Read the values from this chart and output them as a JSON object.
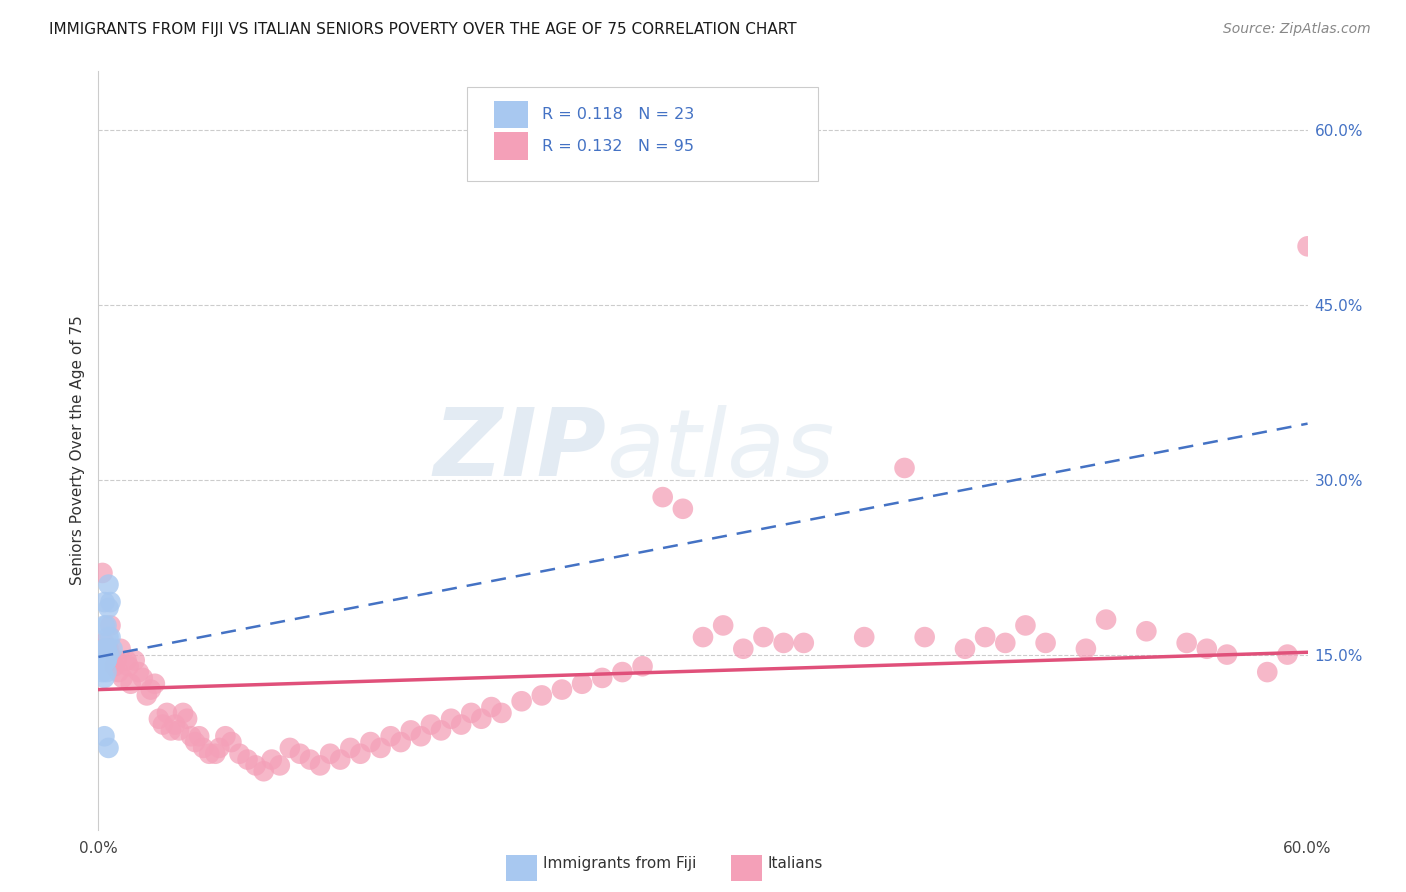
{
  "title": "IMMIGRANTS FROM FIJI VS ITALIAN SENIORS POVERTY OVER THE AGE OF 75 CORRELATION CHART",
  "source": "Source: ZipAtlas.com",
  "ylabel": "Seniors Poverty Over the Age of 75",
  "x_min": 0.0,
  "x_max": 0.6,
  "y_min": 0.0,
  "y_max": 0.65,
  "fiji_R": 0.118,
  "fiji_N": 23,
  "italian_R": 0.132,
  "italian_N": 95,
  "fiji_color": "#a8c8f0",
  "italian_color": "#f4a0b8",
  "fiji_line_color": "#4472c4",
  "italian_line_color": "#e0507a",
  "background_color": "#ffffff",
  "grid_color": "#cccccc",
  "watermark_zip": "ZIP",
  "watermark_atlas": "atlas",
  "fiji_x": [
    0.003,
    0.004,
    0.005,
    0.003,
    0.006,
    0.004,
    0.002,
    0.003,
    0.005,
    0.004,
    0.007,
    0.003,
    0.004,
    0.002,
    0.005,
    0.003,
    0.004,
    0.005,
    0.006,
    0.004,
    0.003,
    0.005,
    0.004
  ],
  "fiji_y": [
    0.195,
    0.175,
    0.21,
    0.155,
    0.165,
    0.155,
    0.14,
    0.155,
    0.165,
    0.145,
    0.155,
    0.175,
    0.135,
    0.135,
    0.19,
    0.13,
    0.145,
    0.15,
    0.195,
    0.155,
    0.08,
    0.07,
    0.145
  ],
  "italian_x": [
    0.002,
    0.003,
    0.005,
    0.006,
    0.008,
    0.009,
    0.01,
    0.011,
    0.012,
    0.014,
    0.015,
    0.016,
    0.018,
    0.02,
    0.022,
    0.024,
    0.026,
    0.028,
    0.03,
    0.032,
    0.034,
    0.036,
    0.038,
    0.04,
    0.042,
    0.044,
    0.046,
    0.048,
    0.05,
    0.052,
    0.055,
    0.058,
    0.06,
    0.063,
    0.066,
    0.07,
    0.074,
    0.078,
    0.082,
    0.086,
    0.09,
    0.095,
    0.1,
    0.105,
    0.11,
    0.115,
    0.12,
    0.125,
    0.13,
    0.135,
    0.14,
    0.145,
    0.15,
    0.155,
    0.16,
    0.165,
    0.17,
    0.175,
    0.18,
    0.185,
    0.19,
    0.195,
    0.2,
    0.21,
    0.22,
    0.23,
    0.24,
    0.25,
    0.26,
    0.27,
    0.28,
    0.29,
    0.3,
    0.31,
    0.32,
    0.33,
    0.34,
    0.35,
    0.38,
    0.4,
    0.41,
    0.43,
    0.44,
    0.45,
    0.46,
    0.47,
    0.49,
    0.5,
    0.52,
    0.54,
    0.55,
    0.56,
    0.58,
    0.59,
    0.6
  ],
  "italian_y": [
    0.22,
    0.16,
    0.155,
    0.175,
    0.14,
    0.145,
    0.135,
    0.155,
    0.13,
    0.145,
    0.14,
    0.125,
    0.145,
    0.135,
    0.13,
    0.115,
    0.12,
    0.125,
    0.095,
    0.09,
    0.1,
    0.085,
    0.09,
    0.085,
    0.1,
    0.095,
    0.08,
    0.075,
    0.08,
    0.07,
    0.065,
    0.065,
    0.07,
    0.08,
    0.075,
    0.065,
    0.06,
    0.055,
    0.05,
    0.06,
    0.055,
    0.07,
    0.065,
    0.06,
    0.055,
    0.065,
    0.06,
    0.07,
    0.065,
    0.075,
    0.07,
    0.08,
    0.075,
    0.085,
    0.08,
    0.09,
    0.085,
    0.095,
    0.09,
    0.1,
    0.095,
    0.105,
    0.1,
    0.11,
    0.115,
    0.12,
    0.125,
    0.13,
    0.135,
    0.14,
    0.285,
    0.275,
    0.165,
    0.175,
    0.155,
    0.165,
    0.16,
    0.16,
    0.165,
    0.31,
    0.165,
    0.155,
    0.165,
    0.16,
    0.175,
    0.16,
    0.155,
    0.18,
    0.17,
    0.16,
    0.155,
    0.15,
    0.135,
    0.15,
    0.5
  ],
  "italian_trend_x0": 0.0,
  "italian_trend_x1": 0.6,
  "italian_trend_y0": 0.12,
  "italian_trend_y1": 0.152,
  "fiji_trend_x0": 0.0,
  "fiji_trend_x1": 0.6,
  "fiji_trend_y0": 0.148,
  "fiji_trend_y1": 0.348
}
